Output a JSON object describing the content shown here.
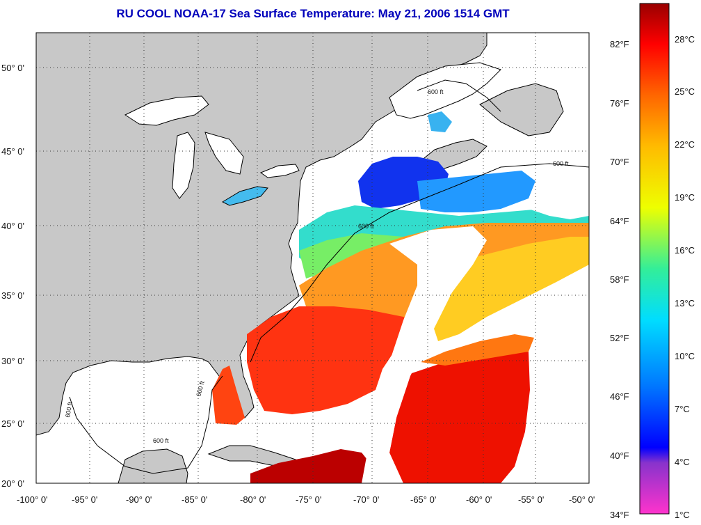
{
  "title": "RU COOL  NOAA-17  Sea Surface Temperature:  May 21, 2006 1514 GMT",
  "map": {
    "lon_range": [
      -100,
      -50
    ],
    "lat_range": [
      20,
      52.5
    ],
    "lon_ticks": [
      "-100° 0'",
      "-95° 0'",
      "-90° 0'",
      "-85° 0'",
      "-80° 0'",
      "-75° 0'",
      "-70° 0'",
      "-65° 0'",
      "-60° 0'",
      "-55° 0'",
      "-50° 0'"
    ],
    "lat_ticks": [
      "20° 0'",
      "25° 0'",
      "30° 0'",
      "35° 0'",
      "40° 0'",
      "45° 0'",
      "50° 0'"
    ],
    "contour_label": "600 ft",
    "grid": "dotted",
    "colors": {
      "land": "#c8c8c8",
      "no_data": "#ffffff",
      "coastline": "#000000"
    }
  },
  "colorbar": {
    "fahrenheit_labels": [
      "82°F",
      "76°F",
      "70°F",
      "64°F",
      "58°F",
      "52°F",
      "46°F",
      "40°F",
      "34°F"
    ],
    "celsius_labels": [
      "28°C",
      "25°C",
      "22°C",
      "19°C",
      "16°C",
      "13°C",
      "10°C",
      "7°C",
      "4°C",
      "1°C"
    ],
    "gradient_stops": [
      "#ff33cc",
      "#8833cc",
      "#0000ff",
      "#0077ff",
      "#00ddff",
      "#33ee99",
      "#eeff00",
      "#ffbb00",
      "#ff6600",
      "#ff0000",
      "#990000"
    ]
  }
}
